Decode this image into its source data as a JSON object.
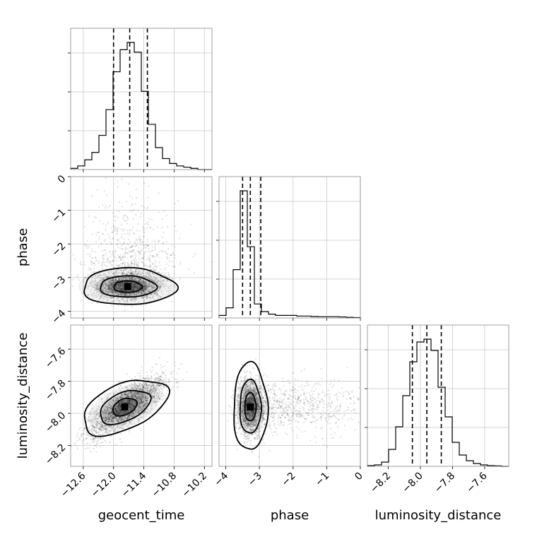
{
  "chart_data": {
    "type": "corner",
    "parameters": [
      "geocent_time",
      "phase",
      "luminosity_distance"
    ],
    "ranges": {
      "geocent_time": [
        -12.85,
        -10.05
      ],
      "phase": [
        -4.2,
        0.0
      ],
      "luminosity_distance": [
        -8.33,
        -7.45
      ]
    },
    "ticks": {
      "geocent_time": [
        -12.6,
        -12.0,
        -11.4,
        -10.8,
        -10.2
      ],
      "phase": [
        -4,
        -3,
        -2,
        -1,
        0
      ],
      "luminosity_distance": [
        -8.2,
        -8.0,
        -7.8,
        -7.6
      ]
    },
    "tick_labels": {
      "geocent_time": [
        "−12.6",
        "−12.0",
        "−11.4",
        "−10.8",
        "−10.2"
      ],
      "phase": [
        "−4",
        "−3",
        "−2",
        "−1",
        "0"
      ],
      "luminosity_distance": [
        "−8.2",
        "−8.0",
        "−7.8",
        "−7.6"
      ]
    },
    "phase_row_tick_labels": [
      "−4",
      "−3",
      "−2",
      "−1",
      "0"
    ],
    "quantiles": {
      "geocent_time": [
        -12.0,
        -11.68,
        -11.33
      ],
      "phase": [
        -3.5,
        -3.27,
        -2.96
      ],
      "luminosity_distance": [
        -8.05,
        -7.96,
        -7.87
      ]
    },
    "histograms": {
      "geocent_time": {
        "edges_start": -12.85,
        "bin_width": 0.14,
        "counts": [
          1,
          3,
          8,
          14,
          28,
          49,
          80,
          98,
          104,
          96,
          64,
          37,
          18,
          9,
          5,
          3,
          2,
          1,
          0,
          0
        ]
      },
      "phase": {
        "edges_start": -4.2,
        "bin_width": 0.21,
        "counts": [
          2,
          8,
          38,
          100,
          56,
          11,
          5,
          3,
          2,
          2,
          2,
          1.5,
          1.5,
          1.2,
          1,
          1,
          1,
          0.8,
          0.5,
          0.3
        ]
      },
      "luminosity_distance": {
        "edges_start": -8.33,
        "bin_width": 0.044,
        "counts": [
          0.5,
          1,
          3,
          12,
          28,
          50,
          74,
          88,
          90,
          82,
          56,
          35,
          17,
          8,
          4,
          2,
          1,
          0.5,
          0.3,
          0
        ]
      }
    },
    "grid": true,
    "legend": "none"
  }
}
